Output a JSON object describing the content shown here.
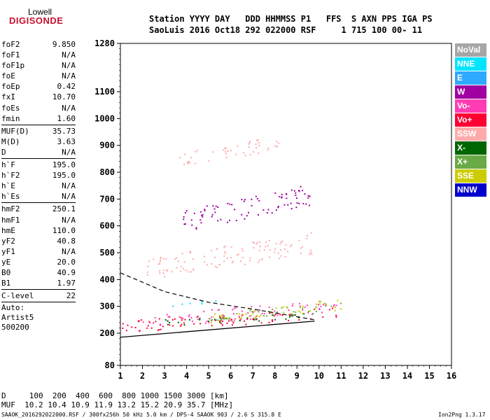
{
  "logo": {
    "line1": "Lowell",
    "line2": "DIGISONDE"
  },
  "header": {
    "line1": "Station YYYY DAY   DDD HHMMSS P1   FFS  S AXN PPS IGA PS",
    "line2": "SaoLuis 2016 Oct18 292 022000 RSF     1 715 100 00- 11"
  },
  "params": {
    "group1": [
      {
        "label": "foF2",
        "value": "9.850"
      },
      {
        "label": "foF1",
        "value": "N/A"
      },
      {
        "label": "foF1p",
        "value": "N/A"
      },
      {
        "label": "foE",
        "value": "N/A"
      },
      {
        "label": "foEp",
        "value": "0.42"
      },
      {
        "label": "fxI",
        "value": "10.70"
      },
      {
        "label": "foEs",
        "value": "N/A"
      },
      {
        "label": "fmin",
        "value": "1.60"
      }
    ],
    "group2": [
      {
        "label": "MUF(D)",
        "value": "35.73"
      },
      {
        "label": "M(D)",
        "value": "3.63"
      },
      {
        "label": "D",
        "value": "N/A"
      }
    ],
    "group3": [
      {
        "label": "h`F",
        "value": "195.0"
      },
      {
        "label": "h`F2",
        "value": "195.0"
      },
      {
        "label": "h`E",
        "value": "N/A"
      },
      {
        "label": "h`Es",
        "value": "N/A"
      }
    ],
    "group4": [
      {
        "label": "hmF2",
        "value": "250.1"
      },
      {
        "label": "hmF1",
        "value": "N/A"
      },
      {
        "label": "hmE",
        "value": "110.0"
      },
      {
        "label": "yF2",
        "value": "40.8"
      },
      {
        "label": "yF1",
        "value": "N/A"
      },
      {
        "label": "yE",
        "value": "20.0"
      },
      {
        "label": "B0",
        "value": "40.9"
      },
      {
        "label": "B1",
        "value": "1.97"
      }
    ],
    "group5": [
      {
        "label": "C-level",
        "value": "22"
      }
    ],
    "auto": [
      "Auto:",
      "Artist5",
      "500200"
    ]
  },
  "legend": [
    {
      "label": "NoVal",
      "color": "#a6a6a6"
    },
    {
      "label": "NNE",
      "color": "#00e5ff"
    },
    {
      "label": "E",
      "color": "#2fa8ff"
    },
    {
      "label": "W",
      "color": "#a000a0"
    },
    {
      "label": "Vo-",
      "color": "#ff3cb4"
    },
    {
      "label": "Vo+",
      "color": "#ff0033"
    },
    {
      "label": "SSW",
      "color": "#ffaaaa"
    },
    {
      "label": "X-",
      "color": "#006600"
    },
    {
      "label": "X+",
      "color": "#6aaa46"
    },
    {
      "label": "SSE",
      "color": "#cccc00"
    },
    {
      "label": "NNW",
      "color": "#0000cc"
    }
  ],
  "footer": {
    "dist_line": "D     100  200  400  600  800 1000 1500 3000 [km]",
    "muf_line": "MUF  10.2 10.4 10.9 11.9 13.2 15.2 20.9 35.7 [MHz]",
    "info_line": "SAAOK_2016292022000.RSF / 300fx256h 50 kHz 5.0 km / DPS-4 SAAOK 903 / 2.6 S 315.8 E",
    "version": "Ion2Png 1.3.17"
  },
  "chart_data": {
    "type": "scatter",
    "xlim": [
      1,
      16
    ],
    "ylim": [
      80,
      1280
    ],
    "x_ticks": [
      1,
      2,
      3,
      4,
      5,
      6,
      7,
      8,
      9,
      10,
      11,
      12,
      13,
      14,
      15,
      16
    ],
    "y_ticks": [
      80,
      200,
      300,
      400,
      500,
      600,
      700,
      800,
      900,
      1000,
      1100,
      1280
    ],
    "grid": false,
    "legend_position": "right",
    "bands": [
      {
        "name": "Vo+",
        "x_start": 1.0,
        "x_end": 11.2,
        "y_start": 205,
        "y_end": 300,
        "color": "#ff0033"
      },
      {
        "name": "Vo-",
        "x_start": 2.0,
        "x_end": 11.0,
        "y_start": 220,
        "y_end": 330,
        "color": "#ff3cb4"
      },
      {
        "name": "X+",
        "x_start": 5.0,
        "x_end": 11.2,
        "y_start": 240,
        "y_end": 320,
        "color": "#6aaa46"
      },
      {
        "name": "X-",
        "x_start": 3.0,
        "x_end": 9.5,
        "y_start": 230,
        "y_end": 280,
        "color": "#006600"
      },
      {
        "name": "SSE",
        "x_start": 5.0,
        "x_end": 11.0,
        "y_start": 240,
        "y_end": 330,
        "color": "#cccc00"
      },
      {
        "name": "NNE",
        "x_start": 3.2,
        "x_end": 5.5,
        "y_start": 300,
        "y_end": 330,
        "color": "#00e5ff"
      },
      {
        "name": "SSW",
        "x_start": 2.0,
        "x_end": 9.8,
        "y_start": 400,
        "y_end": 580,
        "color": "#ffaaaa"
      },
      {
        "name": "W",
        "x_start": 3.8,
        "x_end": 9.6,
        "y_start": 580,
        "y_end": 760,
        "color": "#a000a0"
      },
      {
        "name": "SSW",
        "x_start": 3.5,
        "x_end": 8.2,
        "y_start": 820,
        "y_end": 940,
        "color": "#ffaaaa"
      }
    ],
    "profile_line": [
      [
        1.0,
        185
      ],
      [
        9.8,
        245
      ]
    ],
    "dashed_line": [
      [
        1.0,
        425
      ],
      [
        3.0,
        355
      ],
      [
        5.0,
        315
      ],
      [
        7.0,
        290
      ],
      [
        9.8,
        250
      ]
    ]
  }
}
